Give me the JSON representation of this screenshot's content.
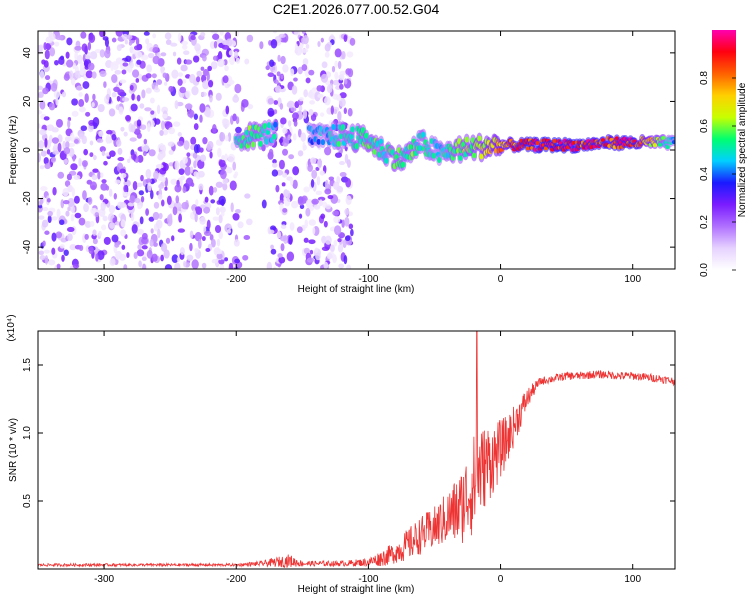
{
  "chart_data": [
    {
      "type": "heatmap",
      "title": "C2E1.2026.077.00.52.G04",
      "xlabel": "Height of straight line (km)",
      "ylabel": "Frequency (Hz)",
      "xlim": [
        -350,
        132
      ],
      "ylim": [
        -49,
        49
      ],
      "xticks": [
        -300,
        -200,
        -100,
        0,
        100
      ],
      "yticks": [
        -40,
        -20,
        0,
        20,
        40
      ],
      "colorbar": {
        "label": "Normalized spectral amplitude",
        "range": [
          0,
          1
        ],
        "ticks": [
          "0.0",
          "0.2",
          "0.4",
          "0.6",
          "0.8"
        ],
        "tick_values": [
          0,
          0.2,
          0.4,
          0.6,
          0.8
        ],
        "colors": [
          "#ffffff",
          "#e6d2ff",
          "#b070ff",
          "#7a1cff",
          "#1a1aff",
          "#00d0ff",
          "#00ff70",
          "#c8ff00",
          "#ffd000",
          "#ff6000",
          "#ff0010",
          "#ff00b0"
        ]
      },
      "noise_region": {
        "x_range": [
          -350,
          -105
        ],
        "gaps": [
          [
            -198,
            -175
          ],
          [
            -112,
            -105
          ]
        ]
      },
      "signal_ridge": [
        {
          "x": -200,
          "f": 5,
          "amp": 0.55
        },
        {
          "x": -185,
          "f": 6,
          "amp": 0.6
        },
        {
          "x": -175,
          "f": 7,
          "amp": 0.5
        },
        {
          "x": -140,
          "f": 5,
          "amp": 0.45
        },
        {
          "x": -120,
          "f": 6,
          "amp": 0.55
        },
        {
          "x": -100,
          "f": 4,
          "amp": 0.6
        },
        {
          "x": -90,
          "f": 0,
          "amp": 0.55
        },
        {
          "x": -75,
          "f": -4,
          "amp": 0.6
        },
        {
          "x": -60,
          "f": 3,
          "amp": 0.55
        },
        {
          "x": -45,
          "f": -2,
          "amp": 0.5
        },
        {
          "x": -35,
          "f": 0,
          "amp": 0.6
        },
        {
          "x": -20,
          "f": 1,
          "amp": 0.65
        },
        {
          "x": 0,
          "f": 2,
          "amp": 0.8
        },
        {
          "x": 20,
          "f": 2,
          "amp": 0.95
        },
        {
          "x": 40,
          "f": 2,
          "amp": 1.0
        },
        {
          "x": 60,
          "f": 2,
          "amp": 0.95
        },
        {
          "x": 80,
          "f": 3,
          "amp": 0.9
        },
        {
          "x": 100,
          "f": 3,
          "amp": 0.95
        },
        {
          "x": 132,
          "f": 3,
          "amp": 0.45
        }
      ]
    },
    {
      "type": "line",
      "title": "",
      "xlabel": "Height of straight line (km)",
      "ylabel": "SNR (10 * v/v)",
      "y_multiplier": "(x10⁴)",
      "xlim": [
        -350,
        132
      ],
      "ylim": [
        0,
        1.75
      ],
      "xticks": [
        -300,
        -200,
        -100,
        0,
        100
      ],
      "yticks": [
        0.5,
        1.0,
        1.5
      ],
      "ytick_labels": [
        "0.5",
        "1.0",
        "1.5"
      ],
      "series": [
        {
          "name": "SNR",
          "color": "#ee3333",
          "x": [
            -350,
            -300,
            -250,
            -200,
            -180,
            -160,
            -150,
            -120,
            -100,
            -90,
            -80,
            -70,
            -60,
            -50,
            -40,
            -30,
            -25,
            -20,
            -18,
            -15,
            -10,
            -5,
            0,
            5,
            10,
            15,
            20,
            25,
            30,
            40,
            50,
            60,
            70,
            80,
            90,
            100,
            110,
            120,
            132
          ],
          "mean": [
            0.03,
            0.03,
            0.03,
            0.03,
            0.04,
            0.06,
            0.04,
            0.04,
            0.05,
            0.08,
            0.12,
            0.18,
            0.25,
            0.3,
            0.38,
            0.45,
            0.55,
            0.62,
            0.7,
            0.72,
            0.78,
            0.82,
            0.88,
            0.95,
            1.05,
            1.15,
            1.25,
            1.32,
            1.38,
            1.4,
            1.42,
            1.42,
            1.43,
            1.43,
            1.42,
            1.42,
            1.41,
            1.4,
            1.38
          ],
          "noise": [
            0.01,
            0.01,
            0.01,
            0.01,
            0.02,
            0.05,
            0.02,
            0.02,
            0.03,
            0.06,
            0.08,
            0.12,
            0.14,
            0.16,
            0.2,
            0.28,
            0.32,
            0.38,
            0.35,
            0.32,
            0.3,
            0.26,
            0.22,
            0.18,
            0.15,
            0.12,
            0.08,
            0.05,
            0.03,
            0.03,
            0.03,
            0.03,
            0.03,
            0.03,
            0.03,
            0.03,
            0.03,
            0.03,
            0.03
          ],
          "peak": {
            "x": -18,
            "y": 1.75
          }
        }
      ]
    }
  ]
}
